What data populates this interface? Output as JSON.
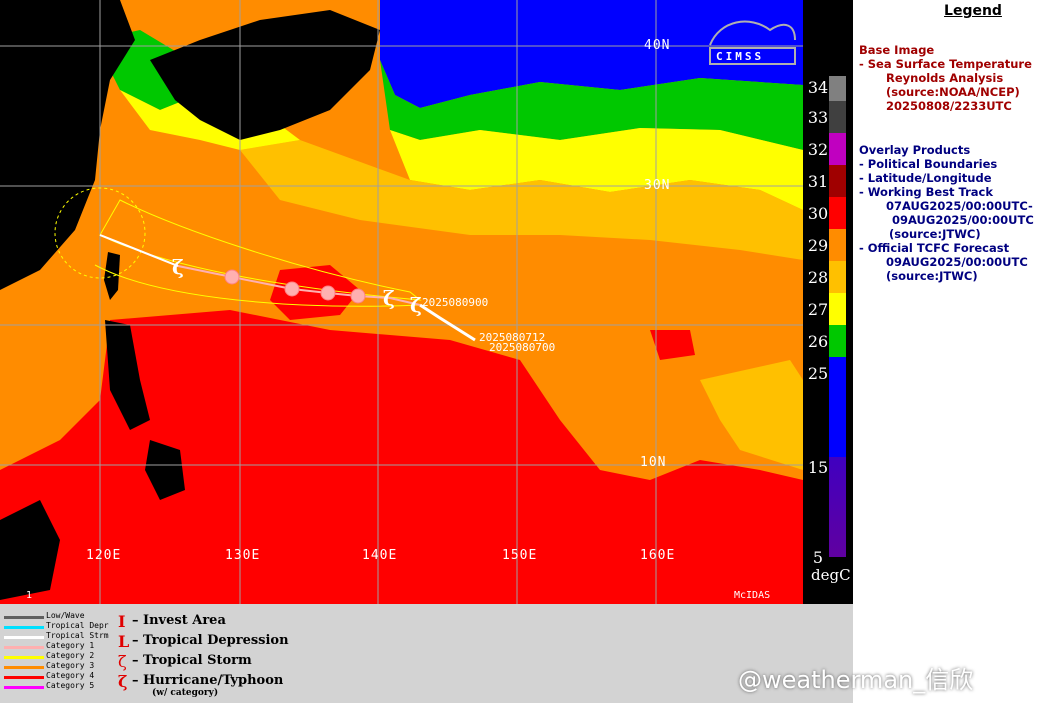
{
  "map": {
    "lat_labels": [
      "40N",
      "30N",
      "10N"
    ],
    "lon_labels": [
      "120E",
      "130E",
      "140E",
      "150E",
      "160E"
    ],
    "track_labels": [
      "2025080900",
      "2025080712",
      "2025080700"
    ],
    "track_symbols": [
      "1",
      "1",
      "1",
      "1"
    ],
    "logo_text": "CIMSS",
    "mcidas_text": "McIDAS",
    "frame_number": "1",
    "colors": {
      "sst_29_30": "#ff8c00",
      "sst_30_31": "#ff0000",
      "sst_28_29": "#ffc000",
      "sst_27": "#ffff00",
      "sst_26": "#00c800",
      "sst_cold": "#0000ff",
      "land": "#000000",
      "track_ts": "#ffffff",
      "track_cat1": "#ffb0b0",
      "forecast_cone": "#ffff00"
    }
  },
  "colorbar": {
    "ticks": [
      "34",
      "33",
      "32",
      "31",
      "30",
      "29",
      "28",
      "27",
      "26",
      "25",
      "15",
      "5"
    ],
    "unit": "degC"
  },
  "legend": {
    "title": "Legend",
    "base_header": "Base Image",
    "base_lines": [
      "-  Sea Surface Temperature",
      "Reynolds Analysis",
      "(source:NOAA/NCEP)",
      "20250808/2233UTC"
    ],
    "overlay_header": "Overlay Products",
    "overlay_lines": [
      "-  Political Boundaries",
      "-  Latitude/Longitude",
      "-  Working Best Track",
      "07AUG2025/00:00UTC-",
      "09AUG2025/00:00UTC",
      "(source:JTWC)",
      "-  Official TCFC Forecast",
      "09AUG2025/00:00UTC",
      "(source:JTWC)"
    ]
  },
  "key": {
    "line_labels": [
      "Low/Wave",
      "Tropical Depr",
      "Tropical Strm",
      "Category 1",
      "Category 2",
      "Category 3",
      "Category 4",
      "Category 5"
    ],
    "line_colors": [
      "#606060",
      "#00e0ff",
      "#ffffff",
      "#ffb0b0",
      "#ffff00",
      "#ff8c00",
      "#ff0000",
      "#ff00ff"
    ],
    "symbols": [
      {
        "glyph": "I",
        "label": "– Invest Area"
      },
      {
        "glyph": "L",
        "label": "– Tropical Depression"
      },
      {
        "glyph": "ζ",
        "label": "– Tropical Storm"
      },
      {
        "glyph": "ζ",
        "label": "– Hurricane/Typhoon"
      }
    ],
    "category_note": "(w/ category)"
  },
  "watermark": "@weatherman_信欣"
}
